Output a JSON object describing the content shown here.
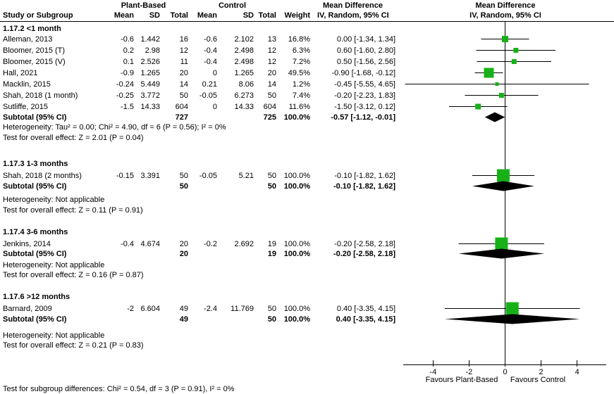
{
  "figure": {
    "group1": "Plant-Based",
    "group2": "Control",
    "study_col": "Study or Subgroup",
    "mean_col": "Mean",
    "sd_col": "SD",
    "total_col": "Total",
    "weight_col": "Weight",
    "effect_col": "Mean Difference",
    "method_col": "IV, Random, 95% CI"
  },
  "chart_data": {
    "type": "forest",
    "effect_measure": "Mean Difference",
    "model": "IV, Random, 95% CI",
    "marker_color": "#17b117",
    "axis": {
      "ticks": [
        -4,
        -2,
        0,
        2,
        4
      ],
      "min": -5.6,
      "max": 5.7,
      "favours_left": "Favours Plant-Based",
      "favours_right": "Favours Control"
    },
    "subgroups": [
      {
        "label": "1.17.2 <1 month",
        "studies": [
          {
            "name": "Alleman, 2013",
            "mean1": "-0.6",
            "sd1": "1.442",
            "total1": "16",
            "mean2": "-0.6",
            "sd2": "2.102",
            "total2": "13",
            "weight": "16.8%",
            "weight_pct": 16.8,
            "md": 0.0,
            "lo": -1.34,
            "hi": 1.34,
            "ci": "0.00 [-1.34, 1.34]"
          },
          {
            "name": "Bloomer, 2015 (T)",
            "mean1": "0.2",
            "sd1": "2.98",
            "total1": "12",
            "mean2": "-0.4",
            "sd2": "2.498",
            "total2": "12",
            "weight": "6.3%",
            "weight_pct": 6.3,
            "md": 0.6,
            "lo": -1.6,
            "hi": 2.8,
            "ci": "0.60 [-1.60, 2.80]"
          },
          {
            "name": "Bloomer, 2015 (V)",
            "mean1": "0.1",
            "sd1": "2.526",
            "total1": "11",
            "mean2": "-0.4",
            "sd2": "2.498",
            "total2": "12",
            "weight": "7.2%",
            "weight_pct": 7.2,
            "md": 0.5,
            "lo": -1.56,
            "hi": 2.56,
            "ci": "0.50 [-1.56, 2.56]"
          },
          {
            "name": "Hall, 2021",
            "mean1": "-0.9",
            "sd1": "1.265",
            "total1": "20",
            "mean2": "0",
            "sd2": "1.265",
            "total2": "20",
            "weight": "49.5%",
            "weight_pct": 49.5,
            "md": -0.9,
            "lo": -1.68,
            "hi": -0.12,
            "ci": "-0.90 [-1.68, -0.12]"
          },
          {
            "name": "Macklin, 2015",
            "mean1": "-0.24",
            "sd1": "5.449",
            "total1": "14",
            "mean2": "0.21",
            "sd2": "8.06",
            "total2": "14",
            "weight": "1.2%",
            "weight_pct": 1.2,
            "md": -0.45,
            "lo": -5.55,
            "hi": 4.65,
            "ci": "-0.45 [-5.55, 4.65]"
          },
          {
            "name": "Shah, 2018 (1 month)",
            "mean1": "-0.25",
            "sd1": "3.772",
            "total1": "50",
            "mean2": "-0.05",
            "sd2": "6.273",
            "total2": "50",
            "weight": "7.4%",
            "weight_pct": 7.4,
            "md": -0.2,
            "lo": -2.23,
            "hi": 1.83,
            "ci": "-0.20 [-2.23, 1.83]"
          },
          {
            "name": "Sutliffe, 2015",
            "mean1": "-1.5",
            "sd1": "14.33",
            "total1": "604",
            "mean2": "0",
            "sd2": "14.33",
            "total2": "604",
            "weight": "11.6%",
            "weight_pct": 11.6,
            "md": -1.5,
            "lo": -3.12,
            "hi": 0.12,
            "ci": "-1.50 [-3.12, 0.12]"
          }
        ],
        "subtotal": {
          "label": "Subtotal (95% CI)",
          "total1": "727",
          "total2": "725",
          "weight": "100.0%",
          "md": -0.57,
          "lo": -1.12,
          "hi": -0.01,
          "ci": "-0.57 [-1.12, -0.01]"
        },
        "heterogeneity": "Heterogeneity: Tau² = 0.00; Chi² = 4.90, df = 6 (P = 0.56); I² = 0%",
        "overall_effect": "Test for overall effect: Z = 2.01 (P = 0.04)"
      },
      {
        "label": "1.17.3 1-3 months",
        "studies": [
          {
            "name": "Shah, 2018 (2 months)",
            "mean1": "-0.15",
            "sd1": "3.391",
            "total1": "50",
            "mean2": "-0.05",
            "sd2": "5.21",
            "total2": "50",
            "weight": "100.0%",
            "weight_pct": 100,
            "md": -0.1,
            "lo": -1.82,
            "hi": 1.62,
            "ci": "-0.10 [-1.82, 1.62]"
          }
        ],
        "subtotal": {
          "label": "Subtotal (95% CI)",
          "total1": "50",
          "total2": "50",
          "weight": "100.0%",
          "md": -0.1,
          "lo": -1.82,
          "hi": 1.62,
          "ci": "-0.10 [-1.82, 1.62]"
        },
        "heterogeneity": "Heterogeneity: Not applicable",
        "overall_effect": "Test for overall effect: Z = 0.11 (P = 0.91)"
      },
      {
        "label": "1.17.4 3-6 months",
        "studies": [
          {
            "name": "Jenkins, 2014",
            "mean1": "-0.4",
            "sd1": "4.674",
            "total1": "20",
            "mean2": "-0.2",
            "sd2": "2.692",
            "total2": "19",
            "weight": "100.0%",
            "weight_pct": 100,
            "md": -0.2,
            "lo": -2.58,
            "hi": 2.18,
            "ci": "-0.20 [-2.58, 2.18]"
          }
        ],
        "subtotal": {
          "label": "Subtotal (95% CI)",
          "total1": "20",
          "total2": "19",
          "weight": "100.0%",
          "md": -0.2,
          "lo": -2.58,
          "hi": 2.18,
          "ci": "-0.20 [-2.58, 2.18]"
        },
        "heterogeneity": "Heterogeneity: Not applicable",
        "overall_effect": "Test for overall effect: Z = 0.16 (P = 0.87)"
      },
      {
        "label": "1.17.6 >12 months",
        "studies": [
          {
            "name": "Barnard, 2009",
            "mean1": "-2",
            "sd1": "6.604",
            "total1": "49",
            "mean2": "-2.4",
            "sd2": "11.769",
            "total2": "50",
            "weight": "100.0%",
            "weight_pct": 100,
            "md": 0.4,
            "lo": -3.35,
            "hi": 4.15,
            "ci": "0.40 [-3.35, 4.15]"
          }
        ],
        "subtotal": {
          "label": "Subtotal (95% CI)",
          "total1": "49",
          "total2": "50",
          "weight": "100.0%",
          "md": 0.4,
          "lo": -3.35,
          "hi": 4.15,
          "ci": "0.40 [-3.35, 4.15]"
        },
        "heterogeneity": "Heterogeneity: Not applicable",
        "overall_effect": "Test for overall effect: Z = 0.21 (P = 0.83)"
      }
    ],
    "footer": "Test for subgroup differences: Chi² = 0.54, df = 3 (P = 0.91), I² = 0%"
  }
}
